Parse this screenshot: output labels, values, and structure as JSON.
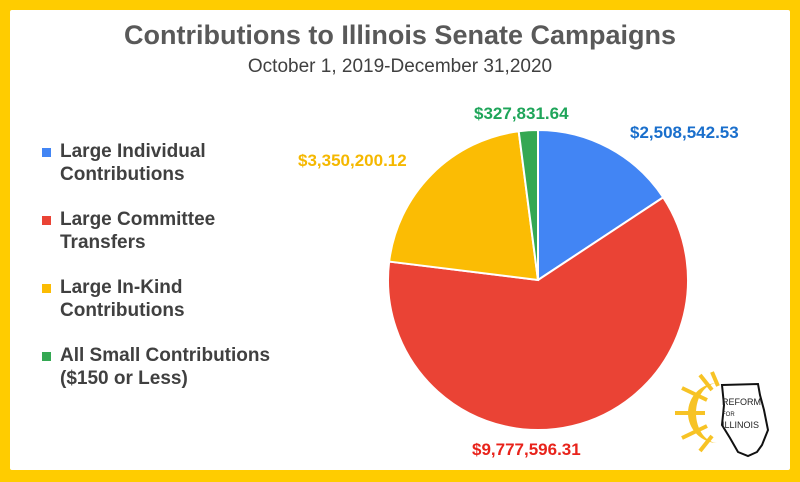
{
  "chart_data": {
    "type": "pie",
    "title": "Contributions to Illinois Senate Campaigns",
    "subtitle": "October 1, 2019-December 31,2020",
    "legend_position": "left",
    "slices": [
      {
        "label": "Large Individual Contributions",
        "value": 2508542.53,
        "display": "$2,508,542.53",
        "color": "#4285F4",
        "label_color": "#1A6FCC"
      },
      {
        "label": "Large Committee Transfers",
        "value": 9777596.31,
        "display": "$9,777,596.31",
        "color": "#EA4335",
        "label_color": "#E8231B"
      },
      {
        "label": "Large In-Kind Contributions",
        "value": 3350200.12,
        "display": "$3,350,200.12",
        "color": "#FBBC04",
        "label_color": "#F5B800"
      },
      {
        "label": "All Small Contributions ($150 or Less)",
        "value": 327831.64,
        "display": "$327,831.64",
        "color": "#34A853",
        "label_color": "#1FA55A"
      }
    ]
  },
  "logo": {
    "text": "REFORM FOR ILLINOIS"
  }
}
